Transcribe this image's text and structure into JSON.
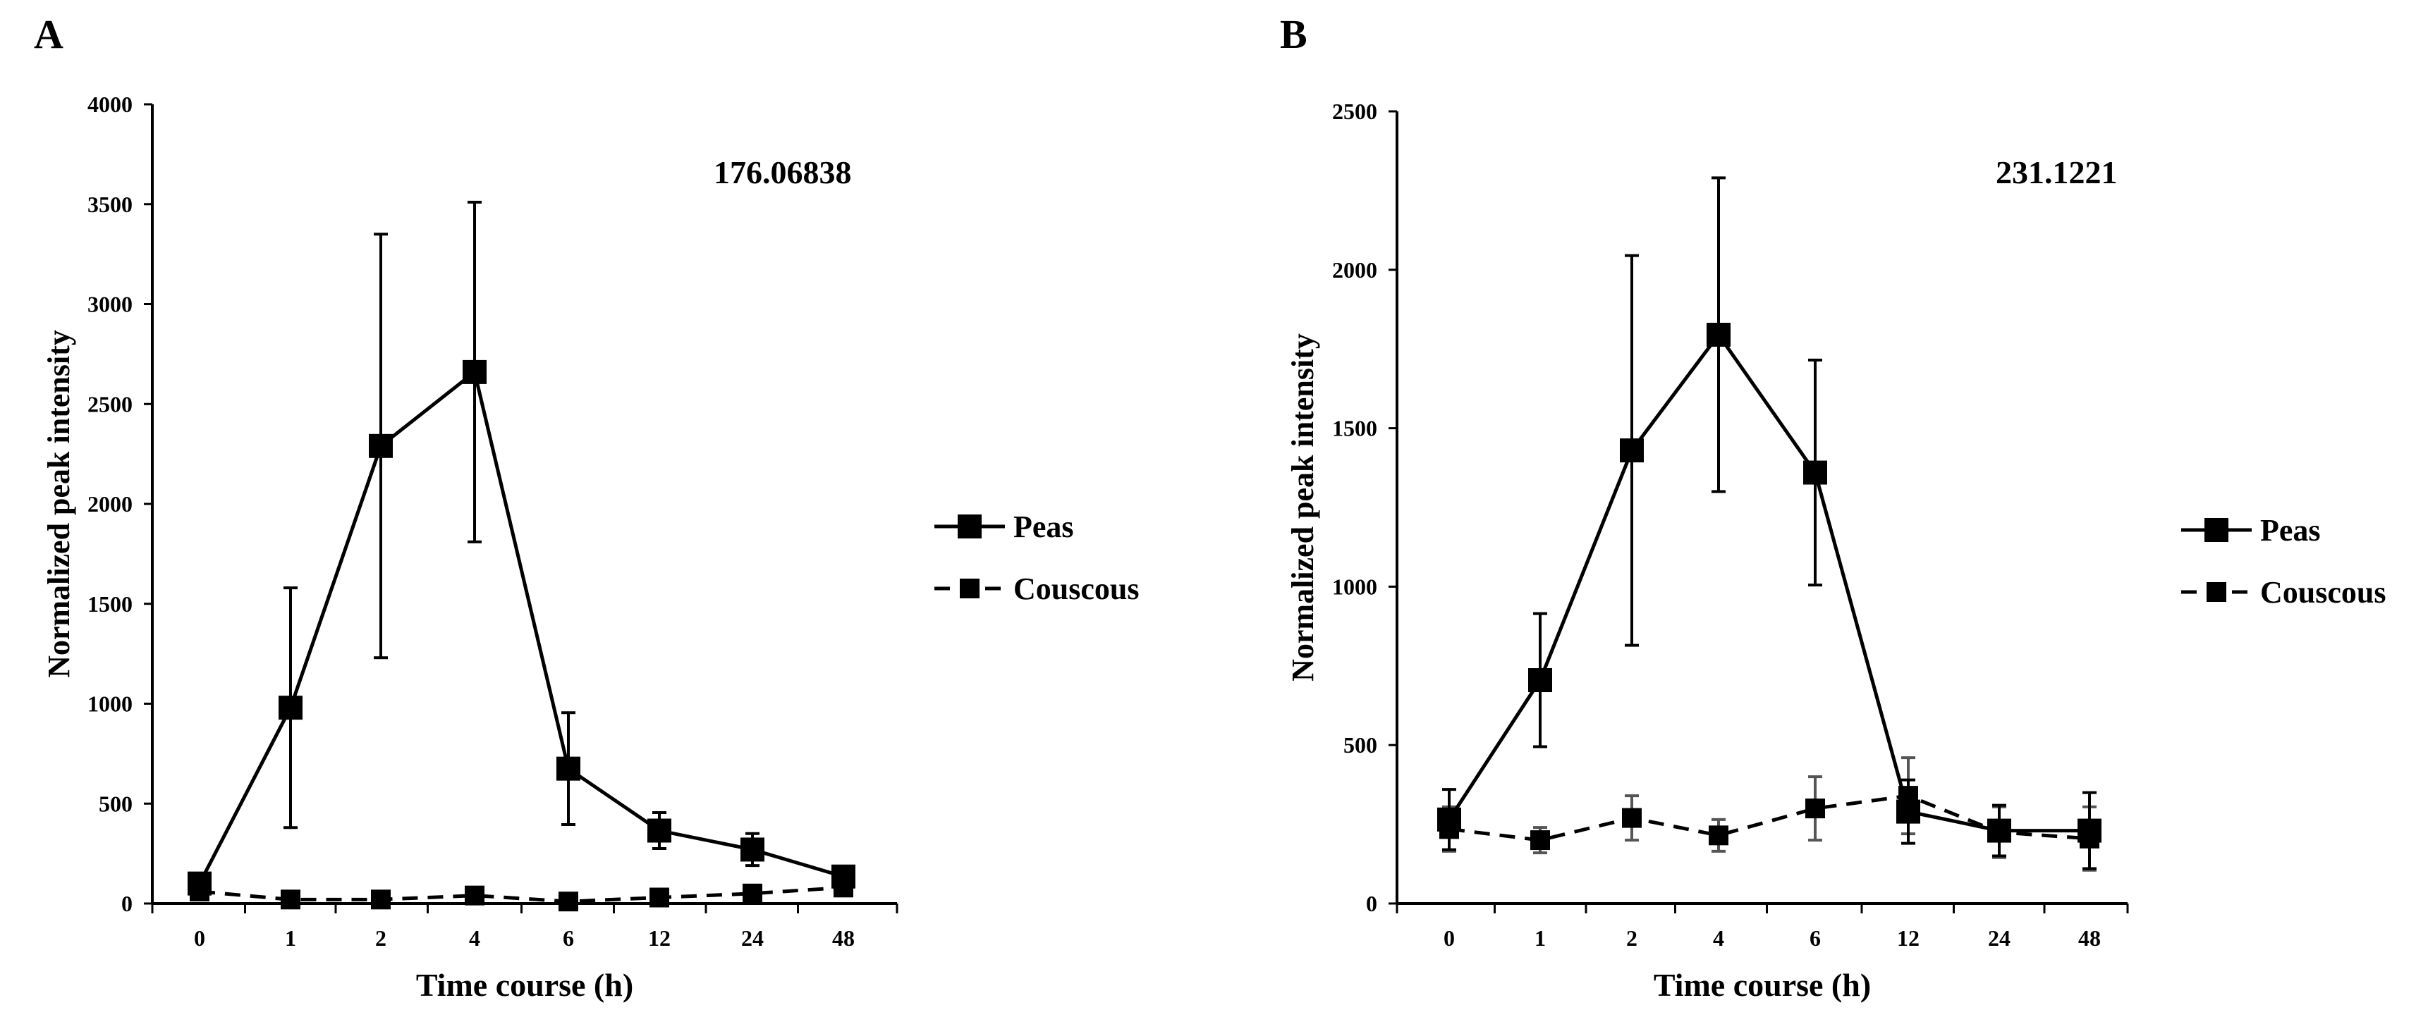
{
  "chart_data": [
    {
      "type": "line",
      "panel_label": "A",
      "annotation": "176.06838",
      "xlabel": "Time course (h)",
      "ylabel": "Normalized peak intensity",
      "categories": [
        "0",
        "1",
        "2",
        "4",
        "6",
        "12",
        "24",
        "48"
      ],
      "ylim": [
        0,
        4000
      ],
      "yticks": [
        "0",
        "500",
        "1000",
        "1500",
        "2000",
        "2500",
        "3000",
        "3500",
        "4000"
      ],
      "series": [
        {
          "name": "Peas",
          "style": "solid",
          "values": [
            100,
            980,
            2290,
            2660,
            675,
            365,
            270,
            135
          ],
          "error": [
            0,
            600,
            1060,
            850,
            280,
            90,
            80,
            0
          ]
        },
        {
          "name": "Couscous",
          "style": "dashed",
          "values": [
            60,
            20,
            20,
            40,
            10,
            30,
            50,
            80
          ],
          "error": [
            0,
            0,
            0,
            0,
            0,
            0,
            0,
            0
          ]
        }
      ]
    },
    {
      "type": "line",
      "panel_label": "B",
      "annotation": "231.1221",
      "xlabel": "Time course (h)",
      "ylabel": "Normalized peak intensity",
      "categories": [
        "0",
        "1",
        "2",
        "4",
        "6",
        "12",
        "24",
        "48"
      ],
      "ylim": [
        0,
        2500
      ],
      "yticks": [
        "0",
        "500",
        "1000",
        "1500",
        "2000",
        "2500"
      ],
      "series": [
        {
          "name": "Peas",
          "style": "solid",
          "values": [
            265,
            705,
            1430,
            1795,
            1360,
            290,
            230,
            230
          ],
          "error": [
            95,
            210,
            615,
            495,
            355,
            100,
            80,
            120
          ]
        },
        {
          "name": "Couscous",
          "style": "dashed",
          "values": [
            235,
            200,
            270,
            215,
            300,
            340,
            225,
            205
          ],
          "error": [
            70,
            40,
            70,
            50,
            100,
            120,
            80,
            100
          ]
        }
      ]
    }
  ]
}
